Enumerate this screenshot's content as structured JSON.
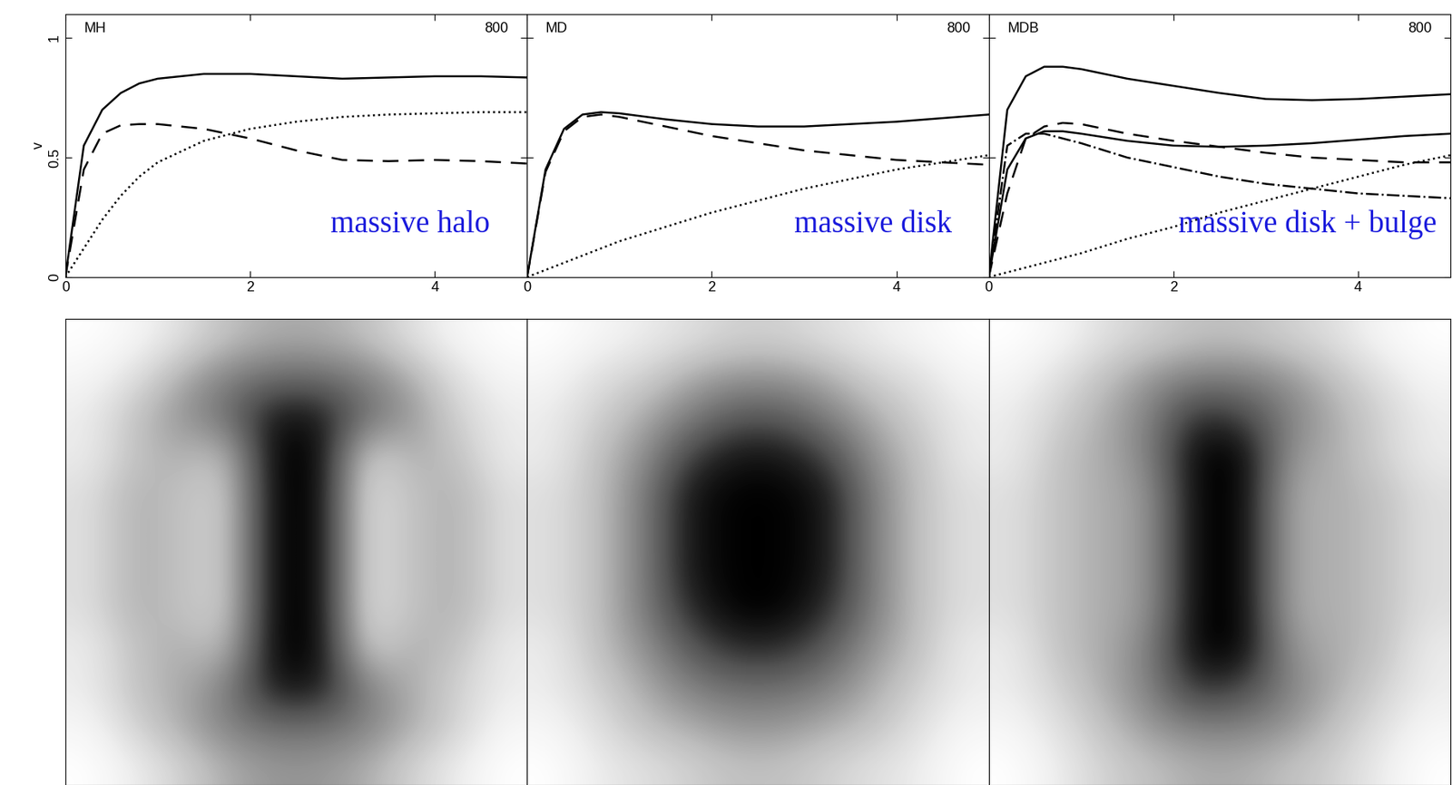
{
  "chart_data": [
    {
      "type": "line",
      "title": "MH",
      "annotations": [
        "800",
        "massive halo"
      ],
      "y_label": "v",
      "x": [
        0,
        0.2,
        0.4,
        0.6,
        0.8,
        1,
        1.5,
        2,
        2.5,
        3,
        3.5,
        4,
        4.5,
        5
      ],
      "xlim": [
        0,
        5
      ],
      "ylim": [
        0,
        1.1
      ],
      "xticks": [
        0,
        2,
        4
      ],
      "yticks": [
        0,
        0.5,
        1
      ],
      "series": [
        {
          "color": "#000000",
          "line_style": "solid",
          "values": [
            0,
            0.55,
            0.7,
            0.77,
            0.81,
            0.83,
            0.85,
            0.85,
            0.84,
            0.83,
            0.835,
            0.84,
            0.84,
            0.835
          ]
        },
        {
          "color": "#000000",
          "line_style": "dashed",
          "values": [
            0,
            0.45,
            0.6,
            0.635,
            0.64,
            0.64,
            0.62,
            0.58,
            0.53,
            0.49,
            0.485,
            0.49,
            0.485,
            0.475
          ]
        },
        {
          "color": "#000000",
          "line_style": "dotted",
          "values": [
            0,
            0.12,
            0.24,
            0.34,
            0.42,
            0.48,
            0.57,
            0.62,
            0.65,
            0.67,
            0.68,
            0.685,
            0.69,
            0.69
          ]
        }
      ]
    },
    {
      "type": "line",
      "title": "MD",
      "annotations": [
        "800",
        "massive disk"
      ],
      "tick_labels": "x",
      "x": [
        0,
        0.2,
        0.4,
        0.6,
        0.8,
        1,
        1.5,
        2,
        2.5,
        3,
        3.5,
        4,
        4.5,
        5
      ],
      "xlim": [
        0,
        5
      ],
      "ylim": [
        0,
        1.1
      ],
      "xticks": [
        0,
        2,
        4
      ],
      "yticks": [
        0,
        0.5,
        1
      ],
      "series": [
        {
          "color": "#000000",
          "line_style": "solid",
          "values": [
            0,
            0.45,
            0.62,
            0.68,
            0.69,
            0.685,
            0.66,
            0.64,
            0.63,
            0.63,
            0.64,
            0.65,
            0.665,
            0.68
          ]
        },
        {
          "color": "#000000",
          "line_style": "dashed",
          "values": [
            0,
            0.44,
            0.61,
            0.67,
            0.68,
            0.67,
            0.63,
            0.59,
            0.56,
            0.53,
            0.51,
            0.49,
            0.48,
            0.47
          ]
        },
        {
          "color": "#000000",
          "line_style": "dotted",
          "values": [
            0,
            0.03,
            0.06,
            0.09,
            0.12,
            0.15,
            0.21,
            0.27,
            0.32,
            0.37,
            0.41,
            0.45,
            0.48,
            0.51
          ]
        }
      ]
    },
    {
      "type": "line",
      "title": "MDB",
      "annotations": [
        "800",
        "massive disk + bulge"
      ],
      "tick_labels": "x",
      "x": [
        0,
        0.2,
        0.4,
        0.6,
        0.8,
        1,
        1.5,
        2,
        2.5,
        3,
        3.5,
        4,
        4.5,
        5
      ],
      "xlim": [
        0,
        5
      ],
      "ylim": [
        0,
        1.1
      ],
      "xticks": [
        0,
        2,
        4
      ],
      "yticks": [
        0,
        0.5,
        1
      ],
      "series": [
        {
          "color": "#000000",
          "line_style": "solid",
          "values": [
            0,
            0.7,
            0.84,
            0.88,
            0.88,
            0.87,
            0.83,
            0.8,
            0.77,
            0.745,
            0.74,
            0.745,
            0.755,
            0.765
          ]
        },
        {
          "color": "#000000",
          "line_style": "solid",
          "values": [
            0,
            0.45,
            0.58,
            0.61,
            0.61,
            0.6,
            0.57,
            0.55,
            0.545,
            0.55,
            0.56,
            0.575,
            0.59,
            0.6
          ]
        },
        {
          "color": "#000000",
          "line_style": "dashed",
          "values": [
            0,
            0.35,
            0.58,
            0.63,
            0.645,
            0.64,
            0.6,
            0.57,
            0.545,
            0.52,
            0.5,
            0.49,
            0.48,
            0.48
          ]
        },
        {
          "color": "#000000",
          "line_style": "dashdot",
          "values": [
            0,
            0.55,
            0.6,
            0.6,
            0.58,
            0.56,
            0.5,
            0.46,
            0.42,
            0.39,
            0.37,
            0.35,
            0.34,
            0.33
          ]
        },
        {
          "color": "#000000",
          "line_style": "dotted",
          "values": [
            0,
            0.02,
            0.04,
            0.06,
            0.08,
            0.1,
            0.16,
            0.21,
            0.27,
            0.32,
            0.37,
            0.42,
            0.47,
            0.51
          ]
        }
      ]
    },
    {
      "type": "heatmap",
      "tick_labels": false,
      "cells": [
        [
          0.3,
          0.35,
          0.45,
          0.55,
          0.6,
          0.6,
          0.55,
          0.45,
          0.35,
          0.3
        ],
        [
          0.35,
          0.45,
          0.6,
          0.7,
          0.75,
          0.75,
          0.7,
          0.6,
          0.45,
          0.35
        ],
        [
          0.4,
          0.55,
          0.65,
          0.75,
          0.95,
          0.95,
          0.75,
          0.65,
          0.5,
          0.4
        ],
        [
          0.4,
          0.55,
          0.6,
          0.55,
          1,
          1,
          0.5,
          0.6,
          0.55,
          0.4
        ],
        [
          0.45,
          0.6,
          0.55,
          0.5,
          1,
          1,
          0.45,
          0.55,
          0.6,
          0.45
        ],
        [
          0.45,
          0.6,
          0.55,
          0.5,
          1,
          1,
          0.45,
          0.55,
          0.6,
          0.45
        ],
        [
          0.45,
          0.6,
          0.55,
          0.5,
          1,
          1,
          0.45,
          0.55,
          0.6,
          0.45
        ],
        [
          0.45,
          0.6,
          0.55,
          0.5,
          1,
          1,
          0.45,
          0.55,
          0.6,
          0.45
        ],
        [
          0.4,
          0.55,
          0.6,
          0.55,
          1,
          1,
          0.5,
          0.6,
          0.55,
          0.4
        ],
        [
          0.4,
          0.55,
          0.6,
          0.7,
          0.95,
          0.95,
          0.7,
          0.6,
          0.5,
          0.4
        ],
        [
          0.35,
          0.5,
          0.6,
          0.7,
          0.75,
          0.75,
          0.7,
          0.6,
          0.5,
          0.35
        ],
        [
          0.3,
          0.4,
          0.5,
          0.6,
          0.65,
          0.65,
          0.6,
          0.5,
          0.4,
          0.3
        ]
      ]
    },
    {
      "type": "heatmap",
      "tick_labels": false,
      "cells": [
        [
          0.3,
          0.35,
          0.4,
          0.45,
          0.5,
          0.5,
          0.45,
          0.4,
          0.35,
          0.3
        ],
        [
          0.35,
          0.45,
          0.5,
          0.6,
          0.65,
          0.65,
          0.6,
          0.5,
          0.45,
          0.35
        ],
        [
          0.4,
          0.5,
          0.6,
          0.7,
          0.8,
          0.8,
          0.7,
          0.6,
          0.5,
          0.4
        ],
        [
          0.4,
          0.55,
          0.65,
          0.85,
          0.95,
          0.95,
          0.85,
          0.65,
          0.55,
          0.4
        ],
        [
          0.45,
          0.55,
          0.7,
          0.95,
          1,
          1,
          0.95,
          0.7,
          0.55,
          0.45
        ],
        [
          0.45,
          0.55,
          0.7,
          0.95,
          1,
          1,
          0.95,
          0.7,
          0.55,
          0.45
        ],
        [
          0.45,
          0.55,
          0.7,
          0.95,
          1,
          1,
          0.95,
          0.7,
          0.55,
          0.45
        ],
        [
          0.45,
          0.55,
          0.7,
          0.9,
          1,
          1,
          0.9,
          0.7,
          0.55,
          0.45
        ],
        [
          0.4,
          0.55,
          0.65,
          0.8,
          0.9,
          0.9,
          0.8,
          0.65,
          0.55,
          0.4
        ],
        [
          0.4,
          0.5,
          0.6,
          0.7,
          0.75,
          0.75,
          0.7,
          0.6,
          0.5,
          0.4
        ],
        [
          0.35,
          0.45,
          0.55,
          0.6,
          0.65,
          0.65,
          0.6,
          0.55,
          0.45,
          0.35
        ],
        [
          0.3,
          0.4,
          0.45,
          0.5,
          0.55,
          0.55,
          0.5,
          0.45,
          0.4,
          0.3
        ]
      ]
    },
    {
      "type": "heatmap",
      "tick_labels": false,
      "cells": [
        [
          0.3,
          0.35,
          0.45,
          0.5,
          0.55,
          0.55,
          0.5,
          0.45,
          0.35,
          0.3
        ],
        [
          0.35,
          0.45,
          0.55,
          0.65,
          0.7,
          0.7,
          0.65,
          0.55,
          0.45,
          0.35
        ],
        [
          0.4,
          0.5,
          0.6,
          0.7,
          0.9,
          0.85,
          0.7,
          0.6,
          0.5,
          0.4
        ],
        [
          0.4,
          0.55,
          0.6,
          0.7,
          1,
          1,
          0.65,
          0.6,
          0.5,
          0.4
        ],
        [
          0.45,
          0.55,
          0.6,
          0.65,
          1,
          1,
          0.6,
          0.6,
          0.55,
          0.45
        ],
        [
          0.45,
          0.55,
          0.6,
          0.65,
          1,
          1,
          0.6,
          0.6,
          0.55,
          0.45
        ],
        [
          0.45,
          0.55,
          0.6,
          0.65,
          1,
          1,
          0.6,
          0.6,
          0.55,
          0.45
        ],
        [
          0.45,
          0.55,
          0.6,
          0.65,
          1,
          1,
          0.6,
          0.6,
          0.55,
          0.45
        ],
        [
          0.4,
          0.55,
          0.6,
          0.7,
          1,
          1,
          0.65,
          0.6,
          0.55,
          0.4
        ],
        [
          0.4,
          0.5,
          0.6,
          0.7,
          0.9,
          0.85,
          0.7,
          0.6,
          0.5,
          0.4
        ],
        [
          0.35,
          0.45,
          0.55,
          0.65,
          0.7,
          0.7,
          0.65,
          0.55,
          0.45,
          0.35
        ],
        [
          0.3,
          0.4,
          0.5,
          0.55,
          0.6,
          0.6,
          0.55,
          0.5,
          0.4,
          0.3
        ]
      ]
    }
  ]
}
